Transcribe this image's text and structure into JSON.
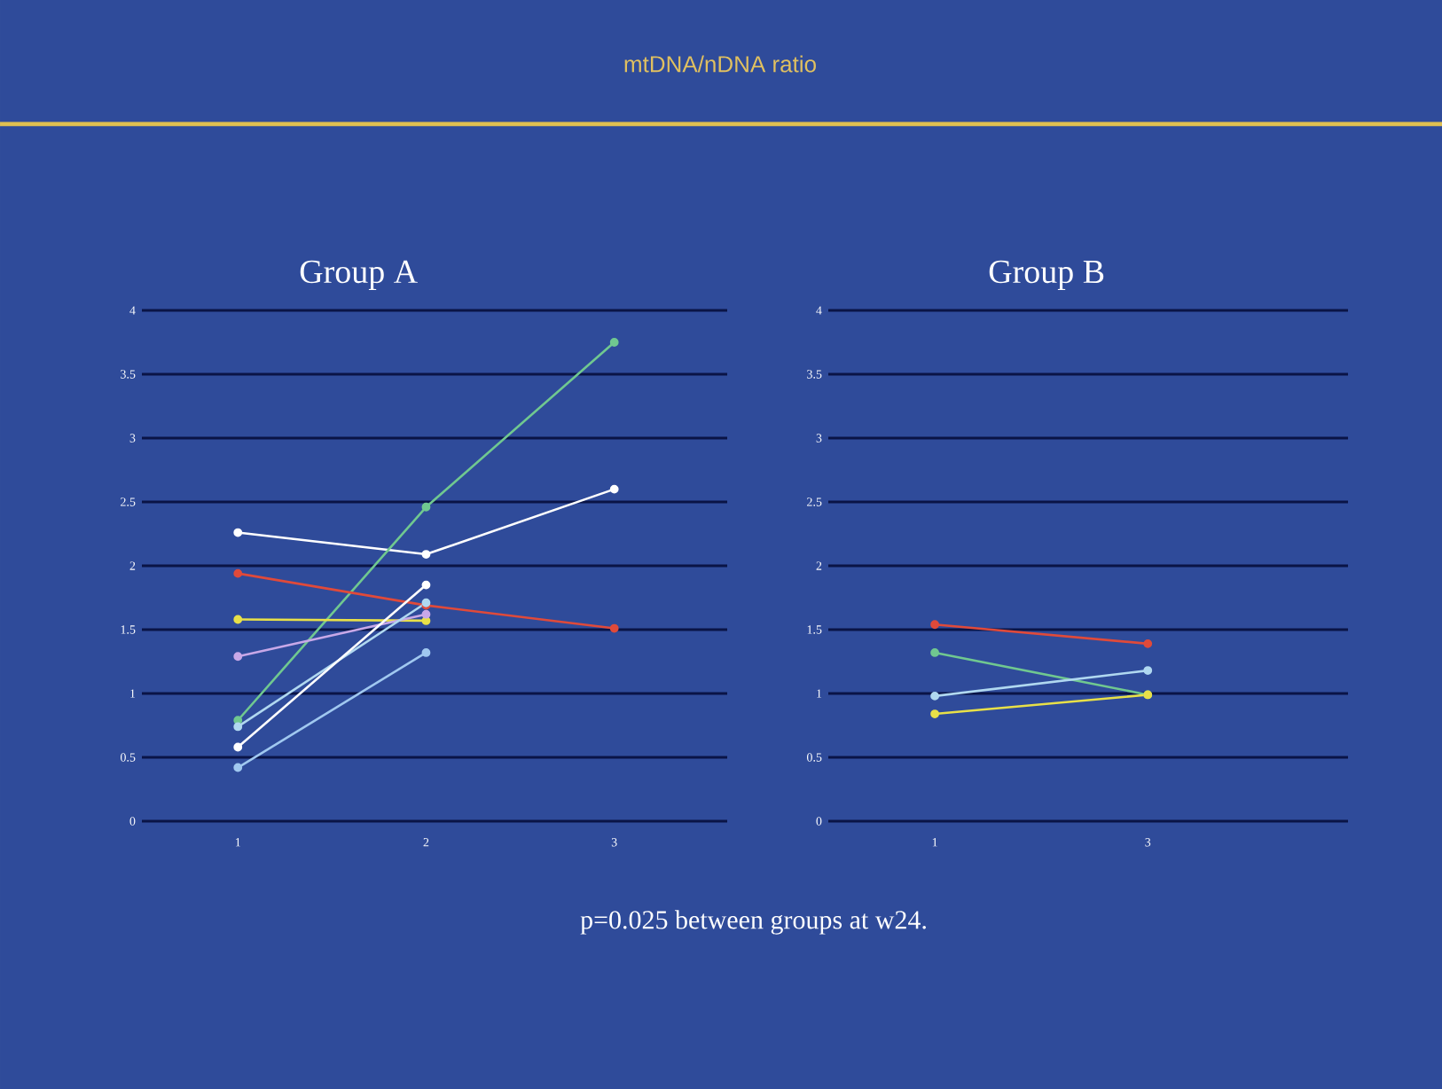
{
  "chart_data": [
    {
      "type": "line",
      "title": "Group A",
      "categories": [
        "1",
        "2",
        "3"
      ],
      "series": [
        {
          "color": "#ffffff",
          "values": [
            2.26,
            2.09,
            2.6
          ]
        },
        {
          "color": "#70c890",
          "values": [
            0.79,
            2.46,
            3.75
          ]
        },
        {
          "color": "#e04a3a",
          "values": [
            1.94,
            1.69,
            1.51
          ]
        },
        {
          "color": "#e8e048",
          "values": [
            1.58,
            1.57,
            null
          ]
        },
        {
          "color": "#c8a8e8",
          "values": [
            1.29,
            1.62,
            null
          ]
        },
        {
          "color": "#b0d8f0",
          "values": [
            0.74,
            1.71,
            null
          ]
        },
        {
          "color": "#ffffff",
          "values": [
            0.58,
            1.85,
            null
          ]
        },
        {
          "color": "#a0c8f0",
          "values": [
            0.42,
            1.32,
            null
          ]
        }
      ],
      "ylim": [
        0,
        4
      ],
      "yticks": [
        0,
        0.5,
        1,
        1.5,
        2,
        2.5,
        3,
        3.5,
        4
      ],
      "grid": "y",
      "marker": "circle",
      "annotations": [
        "mtDNA/nDNA ratio"
      ]
    },
    {
      "type": "line",
      "title": "Group B",
      "categories": [
        "1",
        "3"
      ],
      "series": [
        {
          "color": "#e04a3a",
          "values": [
            1.54,
            1.39
          ]
        },
        {
          "color": "#70c890",
          "values": [
            1.32,
            0.99
          ]
        },
        {
          "color": "#b0d8f0",
          "values": [
            0.98,
            1.18
          ]
        },
        {
          "color": "#e8e048",
          "values": [
            0.84,
            0.99
          ]
        }
      ],
      "ylim": [
        0,
        4
      ],
      "yticks": [
        0,
        0.5,
        1,
        1.5,
        2,
        2.5,
        3,
        3.5,
        4
      ],
      "grid": "y",
      "marker": "circle",
      "annotations": [
        "p=0.025 between groups at w24."
      ]
    }
  ]
}
